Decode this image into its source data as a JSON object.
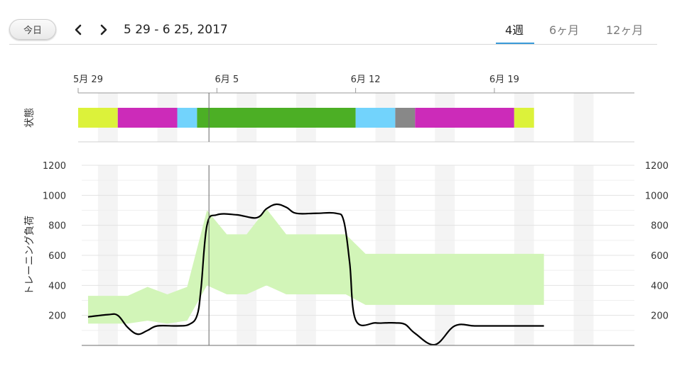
{
  "header": {
    "today_label": "今日",
    "prev_icon": "chevron-left-icon",
    "next_icon": "chevron-right-icon",
    "range_label": "5 29 - 6 25, 2017",
    "tabs": [
      {
        "label": "4週",
        "active": true
      },
      {
        "label": "6ヶ月",
        "active": false
      },
      {
        "label": "12ヶ月",
        "active": false
      }
    ],
    "accent_color": "#3a9ad9"
  },
  "chart_data": [
    {
      "type": "timeline",
      "ylabel": "状態",
      "x_ticks": [
        {
          "day": 0,
          "label": "5月 29"
        },
        {
          "day": 7,
          "label": "6月 5"
        },
        {
          "day": 14,
          "label": "6月 12"
        },
        {
          "day": 21,
          "label": "6月 19"
        }
      ],
      "x_range_days": [
        0,
        28
      ],
      "segments": [
        {
          "start": 0,
          "end": 2,
          "color": "#dcf23a"
        },
        {
          "start": 2,
          "end": 5,
          "color": "#cc2bb9"
        },
        {
          "start": 5,
          "end": 6,
          "color": "#72d3fc"
        },
        {
          "start": 6,
          "end": 14,
          "color": "#4caf25"
        },
        {
          "start": 14,
          "end": 16,
          "color": "#72d3fc"
        },
        {
          "start": 16,
          "end": 17,
          "color": "#888888"
        },
        {
          "start": 17,
          "end": 22,
          "color": "#cc2bb9"
        },
        {
          "start": 22,
          "end": 23,
          "color": "#dcf23a"
        }
      ]
    },
    {
      "type": "line",
      "ylabel": "トレーニング負荷",
      "ylim": [
        0,
        1200
      ],
      "y_ticks": [
        200,
        400,
        600,
        800,
        1000,
        1200
      ],
      "grid": true,
      "x_range_days": [
        0,
        28
      ],
      "load": {
        "x": [
          0.5,
          1.5,
          2,
          2.5,
          3,
          3.5,
          4,
          5,
          5.6,
          6,
          6.2,
          6.5,
          7,
          8,
          9,
          9.5,
          10,
          10.5,
          11,
          12,
          13,
          13.4,
          13.7,
          14,
          15,
          15.5,
          16,
          16.5,
          17,
          18,
          19,
          20,
          21,
          22,
          23,
          23.5
        ],
        "y": [
          190,
          205,
          200,
          120,
          75,
          100,
          130,
          130,
          140,
          200,
          380,
          800,
          870,
          870,
          850,
          910,
          940,
          920,
          880,
          880,
          880,
          830,
          550,
          170,
          150,
          150,
          150,
          140,
          80,
          5,
          130,
          130,
          130,
          130,
          130,
          130
        ]
      },
      "band": {
        "x": [
          0.5,
          1.5,
          2.5,
          3.5,
          4.5,
          5.5,
          6.5,
          7.5,
          8.5,
          9.5,
          10.5,
          11.5,
          12.5,
          13.5,
          14.5,
          15.5,
          16.5,
          17.5,
          18.5,
          19.5,
          20.5,
          21.5,
          22.5,
          23.5
        ],
        "upper": [
          330,
          330,
          330,
          390,
          340,
          390,
          900,
          740,
          740,
          910,
          740,
          740,
          740,
          740,
          610,
          610,
          610,
          610,
          610,
          610,
          610,
          610,
          610,
          610
        ],
        "lower": [
          145,
          145,
          145,
          165,
          145,
          165,
          400,
          340,
          340,
          400,
          340,
          340,
          340,
          340,
          270,
          270,
          270,
          270,
          270,
          270,
          270,
          270,
          270,
          270
        ]
      },
      "band_color": "#d2f5b8",
      "line_color": "#000000"
    }
  ]
}
